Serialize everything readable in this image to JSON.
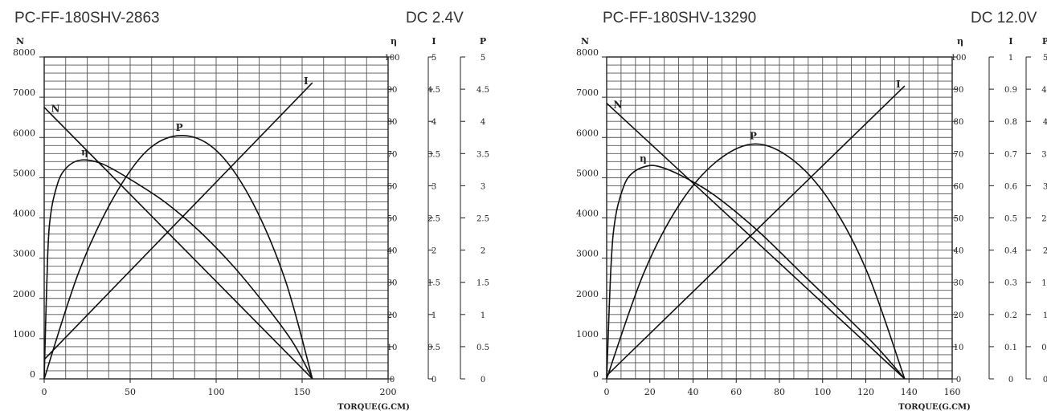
{
  "chart_data": [
    {
      "type": "line",
      "title": "PC-FF-180SHV-2863",
      "voltage": "DC 2.4V",
      "xlabel": "TORQUE(G.CM)",
      "x_ticks": [
        "0",
        "50",
        "100",
        "150",
        "200"
      ],
      "xlim": [
        0,
        200
      ],
      "axes": [
        {
          "label": "N",
          "ticks": [
            "0",
            "1000",
            "2000",
            "3000",
            "4000",
            "5000",
            "6000",
            "7000",
            "8000"
          ],
          "range": [
            0,
            8000
          ]
        },
        {
          "label": "η",
          "ticks": [
            "0",
            "10",
            "20",
            "30",
            "40",
            "50",
            "60",
            "70",
            "80",
            "90",
            "100"
          ],
          "range": [
            0,
            100
          ]
        },
        {
          "label": "I",
          "ticks": [
            "0",
            "0.5",
            "1",
            "1.5",
            "2",
            "2.5",
            "3",
            "3.5",
            "4",
            "4.5",
            "5"
          ],
          "range": [
            0,
            5
          ]
        },
        {
          "label": "P",
          "ticks": [
            "0",
            "0.5",
            "1",
            "1.5",
            "2",
            "2.5",
            "3",
            "3.5",
            "4",
            "4.5",
            "5"
          ],
          "range": [
            0,
            5
          ]
        }
      ],
      "grid": true,
      "series": [
        {
          "name": "N",
          "label": "N",
          "axis": "N",
          "points": [
            [
              0,
              6750
            ],
            [
              156,
              0
            ]
          ]
        },
        {
          "name": "I",
          "label": "I",
          "axis": "I",
          "points": [
            [
              0,
              0.3
            ],
            [
              156,
              4.6
            ]
          ]
        },
        {
          "name": "η",
          "label": "η",
          "axis": "η",
          "points": [
            [
              0,
              0
            ],
            [
              2,
              38
            ],
            [
              4,
              52
            ],
            [
              8,
              61
            ],
            [
              12,
              65
            ],
            [
              18,
              67.5
            ],
            [
              25,
              68
            ],
            [
              35,
              66.5
            ],
            [
              50,
              62
            ],
            [
              70,
              55
            ],
            [
              90,
              46
            ],
            [
              110,
              35
            ],
            [
              130,
              22
            ],
            [
              145,
              11
            ],
            [
              156,
              0
            ]
          ]
        },
        {
          "name": "P",
          "label": "P",
          "axis": "P",
          "points": [
            [
              0,
              0
            ],
            [
              20,
              1.65
            ],
            [
              40,
              2.8
            ],
            [
              60,
              3.55
            ],
            [
              80,
              3.78
            ],
            [
              100,
              3.55
            ],
            [
              120,
              2.8
            ],
            [
              140,
              1.55
            ],
            [
              156,
              0
            ]
          ]
        }
      ]
    },
    {
      "type": "line",
      "title": "PC-FF-180SHV-13290",
      "voltage": "DC 12.0V",
      "xlabel": "TORQUE(G.CM)",
      "x_ticks": [
        "0",
        "20",
        "40",
        "60",
        "80",
        "100",
        "120",
        "140",
        "160"
      ],
      "xlim": [
        0,
        160
      ],
      "axes": [
        {
          "label": "N",
          "ticks": [
            "0",
            "1000",
            "2000",
            "3000",
            "4000",
            "5000",
            "6000",
            "7000",
            "8000"
          ],
          "range": [
            0,
            8000
          ]
        },
        {
          "label": "η",
          "ticks": [
            "0",
            "10",
            "20",
            "30",
            "40",
            "50",
            "60",
            "70",
            "80",
            "90",
            "100"
          ],
          "range": [
            0,
            100
          ]
        },
        {
          "label": "I",
          "ticks": [
            "0",
            "0.1",
            "0.2",
            "0.3",
            "0.4",
            "0.5",
            "0.6",
            "0.7",
            "0.8",
            "0.9",
            "1"
          ],
          "range": [
            0,
            1
          ]
        },
        {
          "label": "P",
          "ticks": [
            "0",
            "0.",
            "1",
            "1.",
            "2",
            "2.",
            "3",
            "3.",
            "4",
            "4.",
            "5"
          ],
          "range": [
            0,
            5
          ]
        }
      ],
      "grid": true,
      "series": [
        {
          "name": "N",
          "label": "N",
          "axis": "N",
          "points": [
            [
              0,
              6850
            ],
            [
              138,
              0
            ]
          ]
        },
        {
          "name": "I",
          "label": "I",
          "axis": "I",
          "points": [
            [
              0,
              0.01
            ],
            [
              138,
              0.91
            ]
          ]
        },
        {
          "name": "η",
          "label": "η",
          "axis": "η",
          "points": [
            [
              0,
              0
            ],
            [
              2,
              35
            ],
            [
              4,
              50
            ],
            [
              8,
              60
            ],
            [
              12,
              64
            ],
            [
              18,
              66
            ],
            [
              24,
              66
            ],
            [
              35,
              63
            ],
            [
              50,
              57
            ],
            [
              70,
              46
            ],
            [
              90,
              33
            ],
            [
              110,
              20
            ],
            [
              125,
              10
            ],
            [
              138,
              0
            ]
          ]
        },
        {
          "name": "P",
          "label": "P",
          "axis": "P",
          "points": [
            [
              0,
              0
            ],
            [
              17.25,
              1.65
            ],
            [
              34.5,
              2.75
            ],
            [
              51.75,
              3.4
            ],
            [
              69,
              3.65
            ],
            [
              86.25,
              3.4
            ],
            [
              103.5,
              2.75
            ],
            [
              120.75,
              1.65
            ],
            [
              138,
              0
            ]
          ]
        }
      ]
    }
  ]
}
